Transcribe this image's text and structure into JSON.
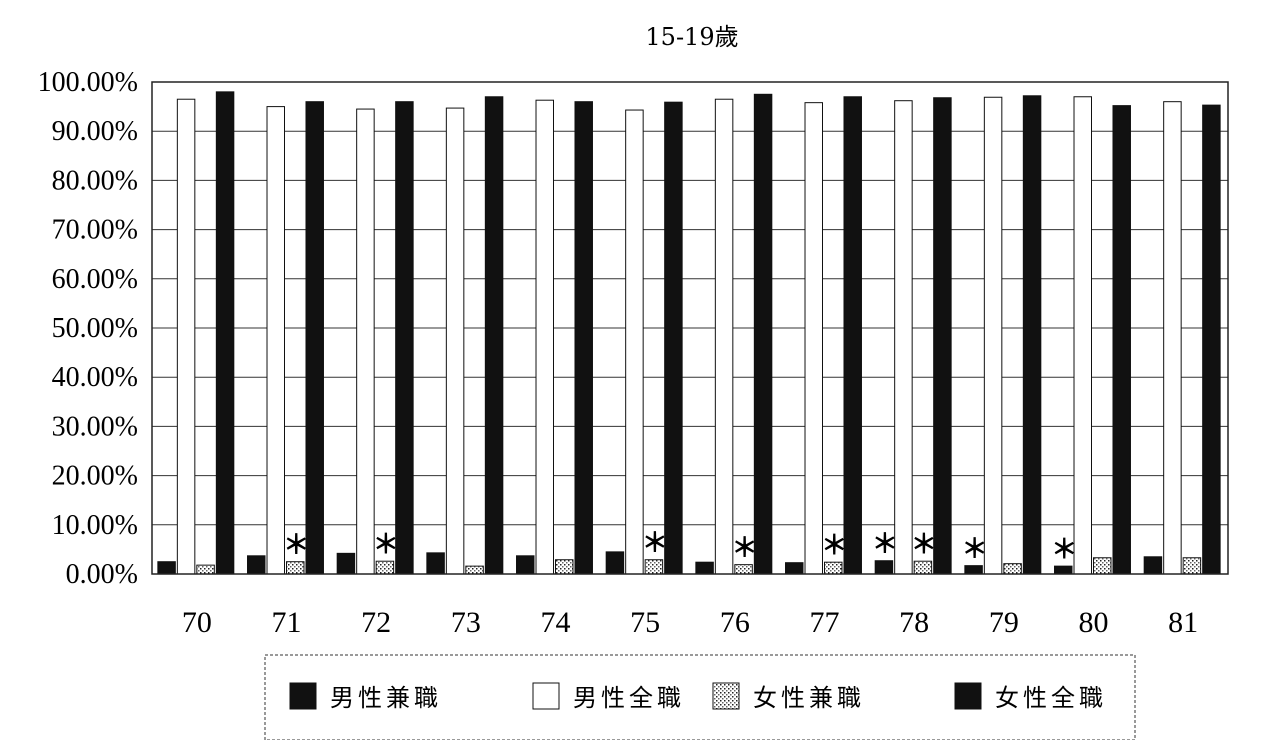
{
  "chart_data": {
    "type": "bar",
    "title": "15-19歲",
    "xlabel": "",
    "ylabel": "",
    "ylim": [
      0,
      100
    ],
    "yticks": [
      "0.00%",
      "10.00%",
      "20.00%",
      "30.00%",
      "40.00%",
      "50.00%",
      "60.00%",
      "70.00%",
      "80.00%",
      "90.00%",
      "100.00%"
    ],
    "categories": [
      "70",
      "71",
      "72",
      "73",
      "74",
      "75",
      "76",
      "77",
      "78",
      "79",
      "80",
      "81"
    ],
    "series": [
      {
        "name": "男性兼職",
        "color": "#111111",
        "pattern": "solid",
        "values": [
          2.5,
          3.7,
          4.2,
          4.3,
          3.7,
          4.5,
          2.4,
          2.3,
          2.7,
          1.7,
          1.6,
          3.5
        ]
      },
      {
        "name": "男性全職",
        "color": "#ffffff",
        "pattern": "outline",
        "values": [
          96.5,
          95.0,
          94.5,
          94.7,
          96.3,
          94.3,
          96.5,
          95.8,
          96.2,
          96.9,
          97.0,
          96.0
        ]
      },
      {
        "name": "女性兼職",
        "color": "#ffffff",
        "pattern": "dotted",
        "values": [
          1.8,
          2.5,
          2.6,
          1.6,
          2.9,
          2.9,
          1.9,
          2.4,
          2.6,
          2.1,
          3.3,
          3.3
        ]
      },
      {
        "name": "女性全職",
        "color": "#111111",
        "pattern": "solid",
        "values": [
          98.0,
          96.0,
          96.0,
          97.0,
          96.0,
          95.9,
          97.5,
          97.0,
          96.8,
          97.2,
          95.2,
          95.3
        ]
      }
    ],
    "annotations": [
      {
        "text": "＊",
        "category": "71",
        "series": "女性兼職"
      },
      {
        "text": "＊",
        "category": "72",
        "series": "女性兼職"
      },
      {
        "text": "＊",
        "category": "75",
        "series": "女性兼職"
      },
      {
        "text": "＊",
        "category": "76",
        "series": "女性兼職"
      },
      {
        "text": "＊",
        "category": "77",
        "series": "女性兼職"
      },
      {
        "text": "＊",
        "category": "78",
        "series": "男性兼職"
      },
      {
        "text": "＊",
        "category": "78",
        "series": "女性兼職"
      },
      {
        "text": "＊",
        "category": "79",
        "series": "男性兼職"
      },
      {
        "text": "＊",
        "category": "80",
        "series": "男性兼職"
      }
    ],
    "grid": true,
    "legend_position": "bottom"
  }
}
